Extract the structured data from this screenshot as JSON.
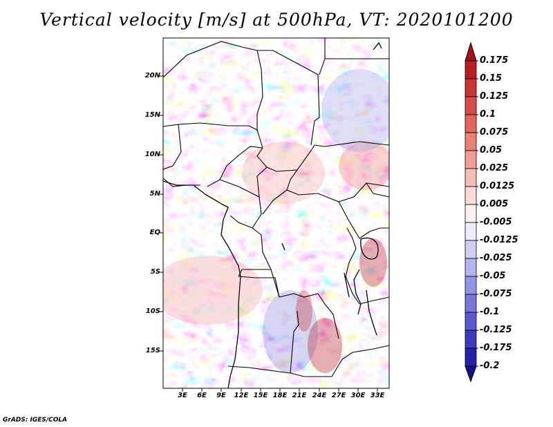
{
  "title": "Vertical velocity [m/s] at 500hPa, VT: 2020101200",
  "credit": "GrADS: IGES/COLA",
  "map": {
    "variable": "Vertical velocity",
    "units": "m/s",
    "level": "500hPa",
    "valid_time": "2020101200",
    "lat_labels": [
      "20N",
      "15N",
      "10N",
      "5N",
      "EQ",
      "5S",
      "10S",
      "15S"
    ],
    "lon_labels": [
      "3E",
      "6E",
      "9E",
      "12E",
      "15E",
      "18E",
      "21E",
      "24E",
      "27E",
      "30E",
      "33E"
    ]
  },
  "colorbar": {
    "labels": [
      "0.175",
      "0.15",
      "0.125",
      "0.1",
      "0.075",
      "0.05",
      "0.025",
      "0.0125",
      "0.005",
      "-0.005",
      "-0.0125",
      "-0.025",
      "-0.05",
      "-0.075",
      "-0.1",
      "-0.125",
      "-0.175",
      "-0.2"
    ],
    "colors": [
      "#a50f15",
      "#b81d24",
      "#cb3432",
      "#d84c47",
      "#e4655e",
      "#ec8178",
      "#f29d96",
      "#f8bcb6",
      "#fcdad6",
      "#fdf1f0",
      "#ececfb",
      "#d0d0f5",
      "#b3b3ee",
      "#9595e6",
      "#7777dc",
      "#5a5ad0",
      "#3c3cc0",
      "#2323aa",
      "#121290"
    ]
  }
}
